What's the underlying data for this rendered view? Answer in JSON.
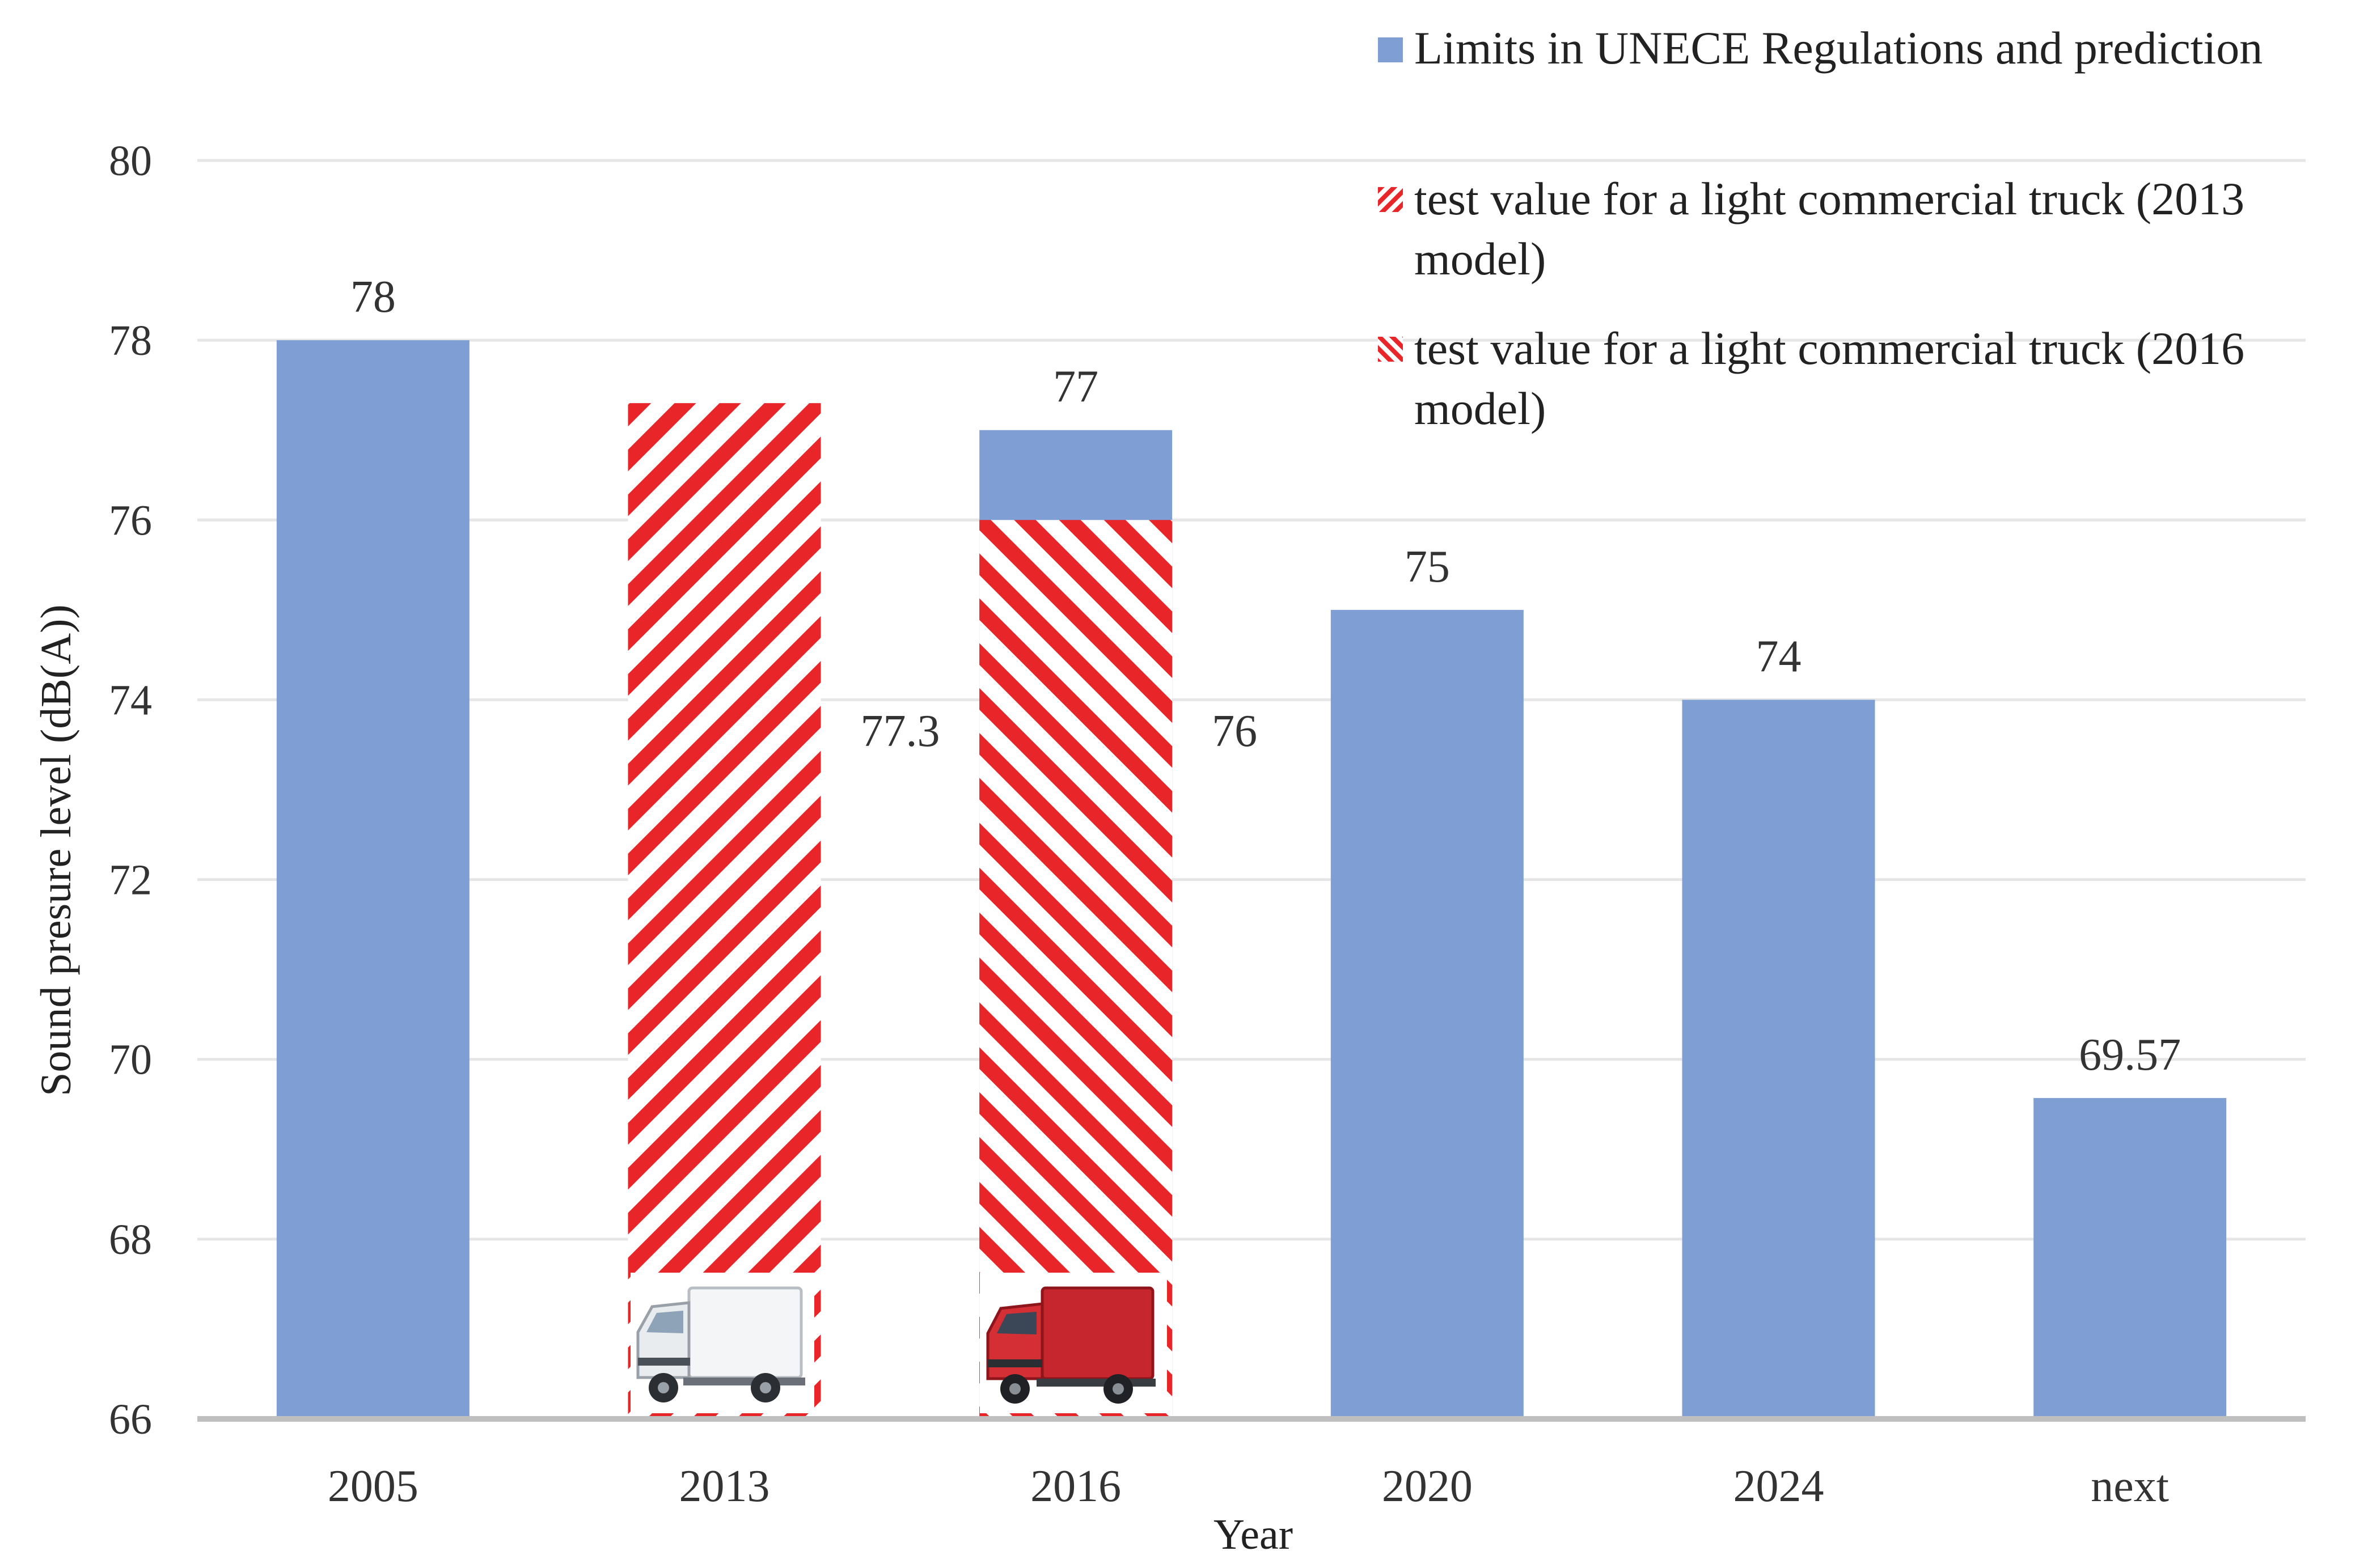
{
  "chart_data": {
    "type": "bar",
    "title": "",
    "xlabel": "Year",
    "ylabel": "Sound presure level (dB(A))",
    "ylim": [
      66,
      80
    ],
    "yticks": [
      66,
      68,
      70,
      72,
      74,
      76,
      78,
      80
    ],
    "grid": true,
    "legend_position": "top-right",
    "categories": [
      "2005",
      "2013",
      "2016",
      "2020",
      "2024",
      "next"
    ],
    "series": [
      {
        "name": "Limits in UNECE Regulations and prediction",
        "style": "solid",
        "color": "#7f9fd4",
        "values": [
          78,
          null,
          77,
          75,
          74,
          69.57
        ],
        "labels": [
          "78",
          "",
          "77",
          "75",
          "74",
          "69.57"
        ]
      },
      {
        "name": "test value for a light commercial truck (2013 model)",
        "name_lines": [
          "test value for a light commercial truck (2013",
          "model)"
        ],
        "style": "hatch-forward",
        "color": "#e8262a",
        "values": [
          null,
          77.3,
          null,
          null,
          null,
          null
        ],
        "labels": [
          "",
          "77.3",
          "",
          "",
          "",
          ""
        ]
      },
      {
        "name": "test value for a light commercial truck (2016 model)",
        "name_lines": [
          "test value for a light commercial truck (2016",
          "model)"
        ],
        "style": "hatch-back",
        "color": "#e8262a",
        "values": [
          null,
          null,
          76,
          null,
          null,
          null
        ],
        "labels": [
          "",
          "",
          "76",
          "",
          "",
          ""
        ]
      }
    ],
    "annotations": [
      {
        "category": "2013",
        "picture": "white-box-truck"
      },
      {
        "category": "2016",
        "picture": "red-box-truck"
      }
    ]
  },
  "colors": {
    "limit_bar": "#7f9fd4",
    "hatch": "#e8262a",
    "grid": "#e6e6e6",
    "axis": "#bfbfbf"
  }
}
